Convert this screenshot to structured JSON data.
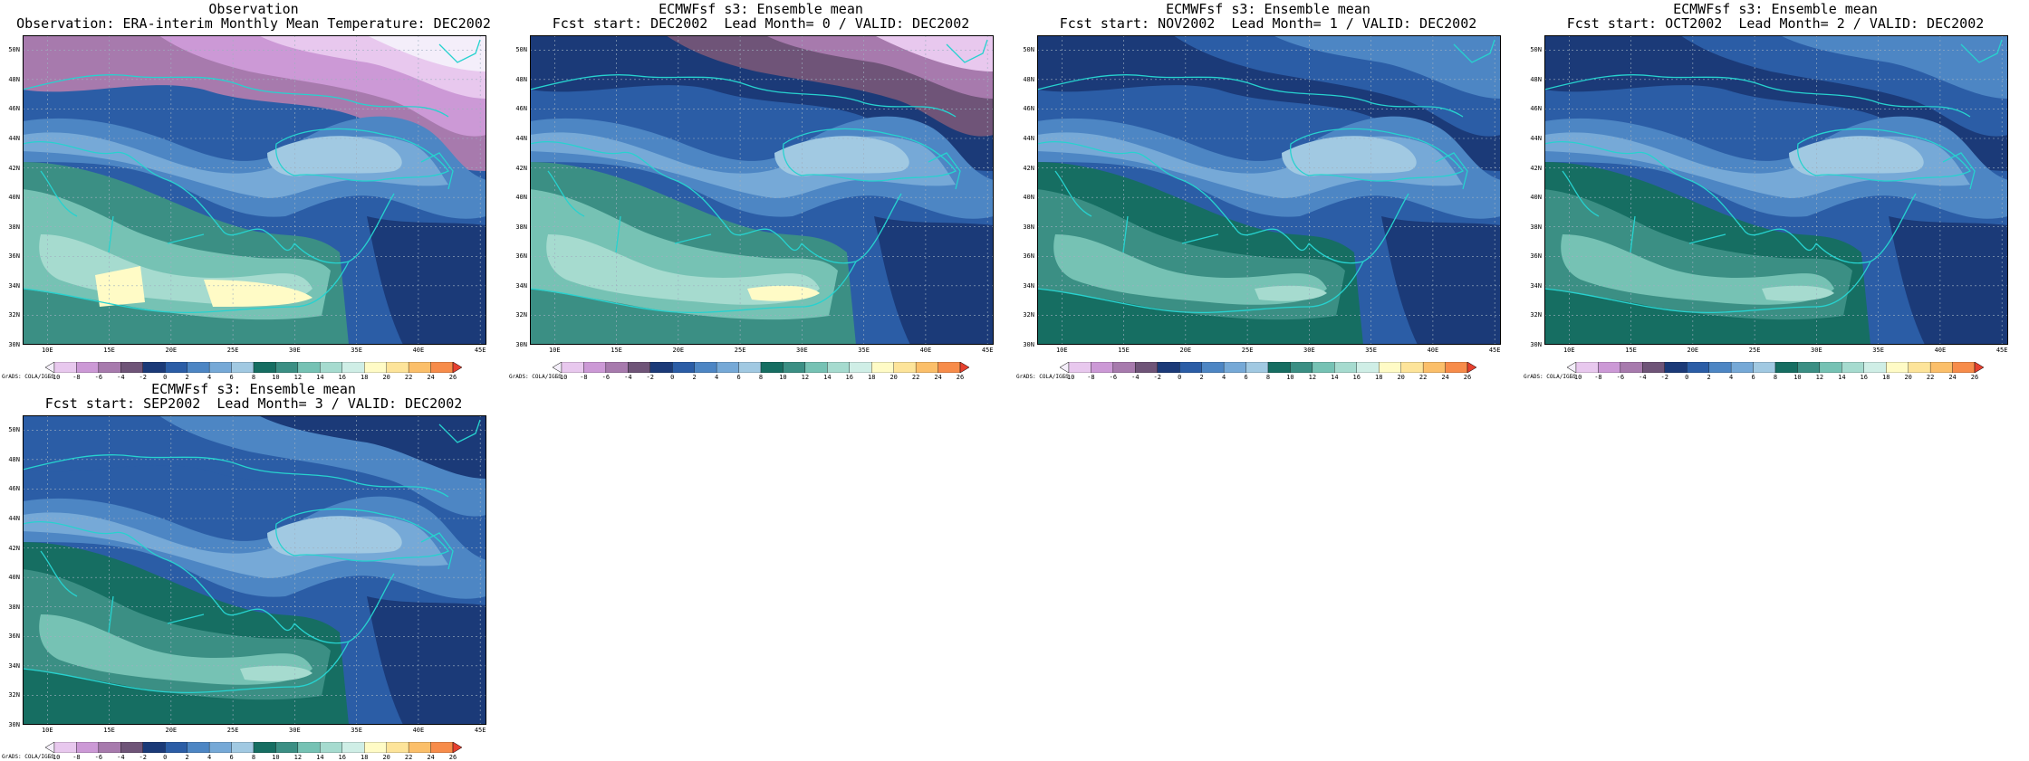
{
  "panels": [
    {
      "title1": "Observation",
      "title2": "Observation: ERA-interim Monthly Mean Temperature: DEC2002",
      "variant": "obs"
    },
    {
      "title1": "ECMWFsf s3: Ensemble mean",
      "title2": "Fcst start: DEC2002  Lead Month= 0 / VALID: DEC2002",
      "variant": "f0"
    },
    {
      "title1": "ECMWFsf s3: Ensemble mean",
      "title2": "Fcst start: NOV2002  Lead Month= 1 / VALID: DEC2002",
      "variant": "f1"
    },
    {
      "title1": "ECMWFsf s3: Ensemble mean",
      "title2": "Fcst start: OCT2002  Lead Month= 2 / VALID: DEC2002",
      "variant": "f2"
    },
    {
      "title1": "ECMWFsf s3: Ensemble mean",
      "title2": "Fcst start: SEP2002  Lead Month= 3 / VALID: DEC2002",
      "variant": "f3"
    }
  ],
  "axes": {
    "lon_labels": [
      "10E",
      "15E",
      "20E",
      "25E",
      "30E",
      "35E",
      "40E",
      "45E"
    ],
    "lat_labels": [
      "50N",
      "48N",
      "46N",
      "44N",
      "42N",
      "40N",
      "38N",
      "36N",
      "34N",
      "32N",
      "30N"
    ],
    "lon_range": [
      8,
      45.5
    ],
    "lat_range": [
      30,
      51
    ]
  },
  "colorbar": {
    "levels": [
      "-10",
      "-8",
      "-6",
      "-4",
      "-2",
      "0",
      "2",
      "4",
      "6",
      "8",
      "10",
      "12",
      "14",
      "16",
      "18",
      "20",
      "22",
      "24",
      "26"
    ],
    "colors": [
      "#f4eefa",
      "#e8c8ee",
      "#cc99d6",
      "#a77aad",
      "#6f5478",
      "#1b3a78",
      "#2b5da6",
      "#4d86c4",
      "#76a9d7",
      "#a1c9e2",
      "#166e62",
      "#3b8f84",
      "#76c2b4",
      "#a6dbcf",
      "#cfeee6",
      "#fffbc6",
      "#fde49a",
      "#fbbf6a",
      "#f78c4a",
      "#e5402e"
    ],
    "credit": "GrADS: COLA/IGES"
  },
  "style": {
    "coast_color": "#27d2cf",
    "grid_color": "#9fb0c0"
  }
}
